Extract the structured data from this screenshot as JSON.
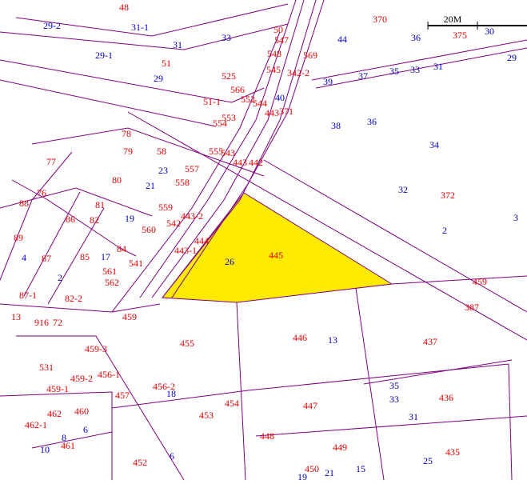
{
  "scale_bar": {
    "label": "20M"
  },
  "red_labels": [
    "48",
    "370",
    "375",
    "50",
    "547",
    "548",
    "569",
    "51",
    "545",
    "342-2",
    "525",
    "566",
    "552",
    "51-1",
    "544",
    "443",
    "371",
    "553",
    "554",
    "78",
    "79",
    "58",
    "555",
    "543",
    "443",
    "442",
    "77",
    "80",
    "557",
    "558",
    "76",
    "88",
    "81",
    "86",
    "82",
    "559",
    "443-2",
    "542",
    "560",
    "444",
    "89",
    "87",
    "85",
    "84",
    "443-1",
    "541",
    "445",
    "372",
    "459",
    "387",
    "561",
    "562",
    "87-1",
    "82-2",
    "13",
    "916",
    "72",
    "459",
    "455",
    "446",
    "437",
    "531",
    "459-2",
    "456-1",
    "459-1",
    "456-2",
    "457",
    "454",
    "447",
    "436",
    "462",
    "460",
    "453",
    "462-1",
    "448",
    "449",
    "435",
    "461",
    "452",
    "450",
    "459-3"
  ],
  "blue_labels": [
    "29-2",
    "31-1",
    "33",
    "44",
    "36",
    "30",
    "31",
    "29-1",
    "29",
    "29",
    "39",
    "37",
    "35",
    "33",
    "31",
    "40",
    "38",
    "36",
    "34",
    "23",
    "21",
    "32",
    "19",
    "2",
    "3",
    "4",
    "17",
    "26",
    "2",
    "13",
    "35",
    "33",
    "18",
    "31",
    "8",
    "6",
    "10",
    "6",
    "25",
    "15",
    "21",
    "19"
  ]
}
